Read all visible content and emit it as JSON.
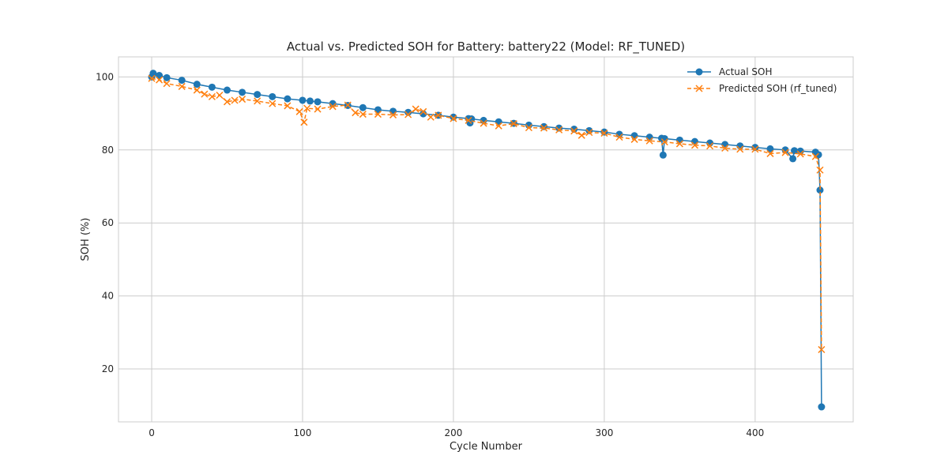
{
  "chart_data": {
    "type": "line",
    "title": "Actual vs. Predicted SOH for Battery: battery22 (Model: RF_TUNED)",
    "xlabel": "Cycle Number",
    "ylabel": "SOH (%)",
    "xlim": [
      -22,
      465
    ],
    "ylim": [
      5.5,
      105.5
    ],
    "xticks": [
      0,
      100,
      200,
      300,
      400
    ],
    "yticks": [
      20,
      40,
      60,
      80,
      100
    ],
    "grid": true,
    "legend_position": "top-right",
    "series": [
      {
        "name": "Actual SOH",
        "color": "#1f77b4",
        "marker": "circle",
        "linestyle": "solid",
        "points": [
          [
            0,
            100.0
          ],
          [
            1,
            101.0
          ],
          [
            5,
            100.4
          ],
          [
            10,
            99.8
          ],
          [
            20,
            99.1
          ],
          [
            30,
            98.0
          ],
          [
            40,
            97.2
          ],
          [
            50,
            96.4
          ],
          [
            60,
            95.8
          ],
          [
            70,
            95.2
          ],
          [
            80,
            94.6
          ],
          [
            90,
            94.0
          ],
          [
            100,
            93.6
          ],
          [
            105,
            93.4
          ],
          [
            110,
            93.2
          ],
          [
            120,
            92.7
          ],
          [
            130,
            92.2
          ],
          [
            140,
            91.6
          ],
          [
            150,
            91.0
          ],
          [
            160,
            90.6
          ],
          [
            170,
            90.3
          ],
          [
            180,
            89.9
          ],
          [
            190,
            89.5
          ],
          [
            200,
            89.0
          ],
          [
            210,
            88.6
          ],
          [
            211,
            87.4
          ],
          [
            212,
            88.5
          ],
          [
            220,
            88.1
          ],
          [
            230,
            87.7
          ],
          [
            240,
            87.3
          ],
          [
            250,
            86.8
          ],
          [
            260,
            86.4
          ],
          [
            270,
            86.0
          ],
          [
            280,
            85.7
          ],
          [
            290,
            85.3
          ],
          [
            300,
            84.9
          ],
          [
            310,
            84.3
          ],
          [
            320,
            83.9
          ],
          [
            330,
            83.5
          ],
          [
            338,
            83.2
          ],
          [
            339,
            78.6
          ],
          [
            340,
            83.1
          ],
          [
            350,
            82.7
          ],
          [
            360,
            82.3
          ],
          [
            370,
            81.9
          ],
          [
            380,
            81.5
          ],
          [
            390,
            81.1
          ],
          [
            400,
            80.7
          ],
          [
            410,
            80.3
          ],
          [
            420,
            80.0
          ],
          [
            425,
            77.6
          ],
          [
            426,
            79.8
          ],
          [
            430,
            79.7
          ],
          [
            440,
            79.4
          ],
          [
            442,
            78.7
          ],
          [
            443,
            69.0
          ],
          [
            444,
            9.6
          ]
        ]
      },
      {
        "name": "Predicted SOH (rf_tuned)",
        "color": "#ff7f0e",
        "marker": "x",
        "linestyle": "dashed",
        "points": [
          [
            0,
            99.6
          ],
          [
            5,
            99.2
          ],
          [
            10,
            98.2
          ],
          [
            20,
            97.4
          ],
          [
            30,
            96.4
          ],
          [
            35,
            95.3
          ],
          [
            40,
            94.6
          ],
          [
            45,
            95.0
          ],
          [
            50,
            93.2
          ],
          [
            55,
            93.6
          ],
          [
            60,
            93.9
          ],
          [
            70,
            93.4
          ],
          [
            80,
            92.7
          ],
          [
            90,
            92.1
          ],
          [
            98,
            90.5
          ],
          [
            101,
            87.6
          ],
          [
            103,
            91.4
          ],
          [
            110,
            91.2
          ],
          [
            120,
            91.9
          ],
          [
            130,
            92.3
          ],
          [
            135,
            90.2
          ],
          [
            140,
            89.8
          ],
          [
            150,
            89.8
          ],
          [
            160,
            89.6
          ],
          [
            170,
            89.7
          ],
          [
            175,
            91.2
          ],
          [
            180,
            90.5
          ],
          [
            185,
            89.0
          ],
          [
            190,
            89.5
          ],
          [
            200,
            88.6
          ],
          [
            210,
            88.1
          ],
          [
            220,
            87.3
          ],
          [
            230,
            86.6
          ],
          [
            240,
            87.2
          ],
          [
            250,
            86.1
          ],
          [
            260,
            86.0
          ],
          [
            270,
            85.5
          ],
          [
            280,
            85.2
          ],
          [
            285,
            84.0
          ],
          [
            290,
            84.8
          ],
          [
            300,
            84.6
          ],
          [
            310,
            83.5
          ],
          [
            320,
            82.9
          ],
          [
            330,
            82.5
          ],
          [
            340,
            82.2
          ],
          [
            350,
            81.7
          ],
          [
            360,
            81.3
          ],
          [
            370,
            81.1
          ],
          [
            380,
            80.5
          ],
          [
            390,
            80.2
          ],
          [
            400,
            80.2
          ],
          [
            410,
            79.0
          ],
          [
            420,
            79.3
          ],
          [
            430,
            78.9
          ],
          [
            440,
            78.2
          ],
          [
            443,
            74.5
          ],
          [
            444,
            25.3
          ]
        ]
      }
    ]
  }
}
